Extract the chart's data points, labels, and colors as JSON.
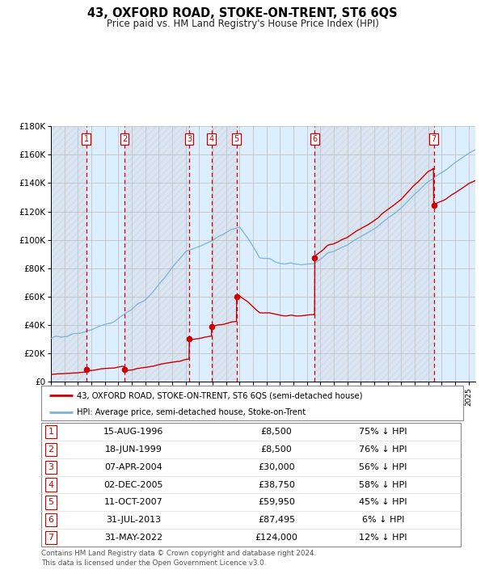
{
  "title": "43, OXFORD ROAD, STOKE-ON-TRENT, ST6 6QS",
  "subtitle": "Price paid vs. HM Land Registry's House Price Index (HPI)",
  "sales": [
    {
      "num": 1,
      "date_str": "15-AUG-1996",
      "year": 1996.62,
      "price": 8500,
      "pct": "75% ↓ HPI"
    },
    {
      "num": 2,
      "date_str": "18-JUN-1999",
      "year": 1999.46,
      "price": 8500,
      "pct": "76% ↓ HPI"
    },
    {
      "num": 3,
      "date_str": "07-APR-2004",
      "year": 2004.27,
      "price": 30000,
      "pct": "56% ↓ HPI"
    },
    {
      "num": 4,
      "date_str": "02-DEC-2005",
      "year": 2005.92,
      "price": 38750,
      "pct": "58% ↓ HPI"
    },
    {
      "num": 5,
      "date_str": "11-OCT-2007",
      "year": 2007.78,
      "price": 59950,
      "pct": "45% ↓ HPI"
    },
    {
      "num": 6,
      "date_str": "31-JUL-2013",
      "year": 2013.58,
      "price": 87495,
      "pct": "6% ↓ HPI"
    },
    {
      "num": 7,
      "date_str": "31-MAY-2022",
      "year": 2022.41,
      "price": 124000,
      "pct": "12% ↓ HPI"
    }
  ],
  "hpi_color": "#7ab3d4",
  "price_color": "#cc0000",
  "marker_color": "#cc0000",
  "shade_color": "#ddeeff",
  "hatch_color": "#c8d8e8",
  "dashed_line_color": "#cc0000",
  "grid_color": "#bbbbbb",
  "ylim": [
    0,
    180000
  ],
  "xlim_start": 1994.0,
  "xlim_end": 2025.5,
  "ytick_step": 20000,
  "legend_label_red": "43, OXFORD ROAD, STOKE-ON-TRENT, ST6 6QS (semi-detached house)",
  "legend_label_blue": "HPI: Average price, semi-detached house, Stoke-on-Trent",
  "footer": "Contains HM Land Registry data © Crown copyright and database right 2024.\nThis data is licensed under the Open Government Licence v3.0.",
  "background_color": "#ffffff",
  "plot_bg_color": "#eef4fb"
}
